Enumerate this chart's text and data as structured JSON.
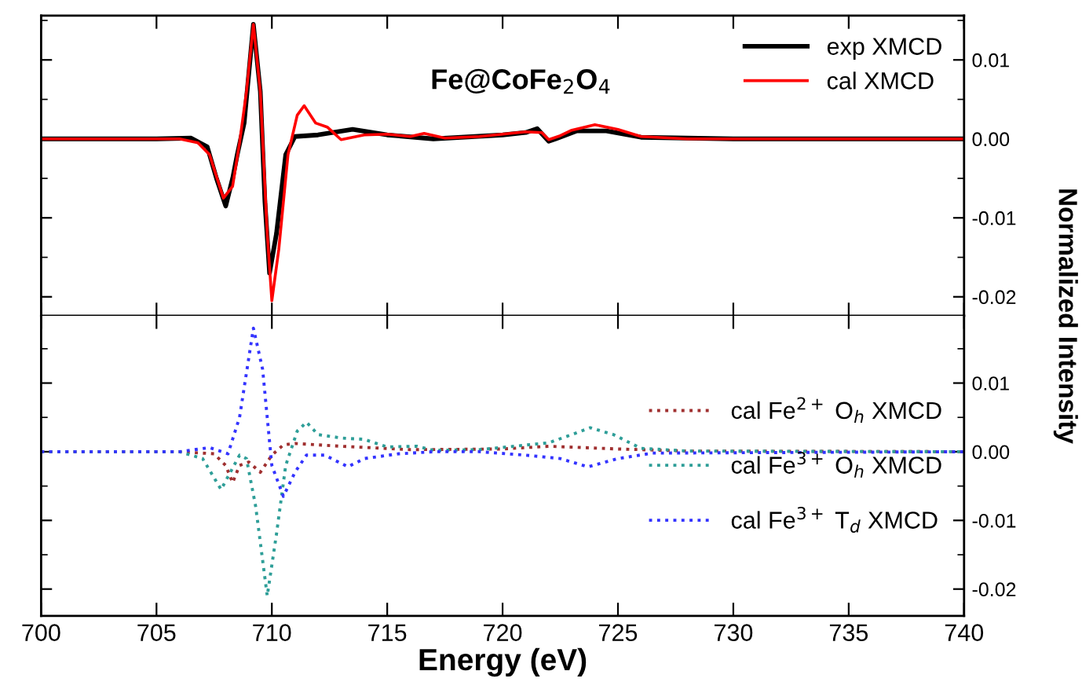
{
  "chart_data": [
    {
      "type": "line",
      "title": "Fe@CoFe$_{2}$O$_{4}$",
      "ylabel": "Normalized Intensity",
      "xlim": [
        700,
        740
      ],
      "xticks": [
        700,
        705,
        710,
        715,
        720,
        725,
        730,
        735,
        740
      ],
      "ylim": [
        -0.0224,
        0.0156
      ],
      "yticks": [
        {
          "value": 0.01,
          "label": "0.01"
        },
        {
          "value": 0,
          "label": "0.00"
        },
        {
          "value": -0.01,
          "label": "-0.01"
        },
        {
          "value": -0.02,
          "label": "-0.02"
        }
      ],
      "tick_labels": "y",
      "legend": "top right",
      "grid": false,
      "line_style": "solid",
      "series": [
        {
          "name": "exp XMCD",
          "color": "#000000",
          "x": [
            700,
            705,
            706.5,
            707.2,
            707.6,
            708.0,
            708.3,
            708.5,
            708.8,
            709.2,
            709.5,
            709.7,
            709.9,
            710.2,
            710.6,
            711.0,
            712,
            713.5,
            715,
            717,
            720,
            721,
            721.5,
            722,
            722.3,
            723.2,
            724.5,
            726,
            730,
            740
          ],
          "values": [
            0,
            0,
            0.0001,
            -0.001,
            -0.005,
            -0.0085,
            -0.005,
            -0.002,
            0.002,
            0.0145,
            0.006,
            -0.008,
            -0.017,
            -0.012,
            -0.002,
            0.0003,
            0.0005,
            0.0012,
            0.0005,
            0,
            0.0005,
            0.0008,
            0.0013,
            -0.0003,
            0,
            0.001,
            0.001,
            0.0002,
            0,
            0
          ]
        },
        {
          "name": "cal XMCD",
          "color": "#ff0000",
          "x": [
            700,
            706,
            706.8,
            707.3,
            707.9,
            708.3,
            708.6,
            708.9,
            709.2,
            709.5,
            709.8,
            710.0,
            710.3,
            710.7,
            711.1,
            711.4,
            711.9,
            712.4,
            713,
            714,
            715,
            716,
            716.6,
            717.5,
            719,
            720,
            721,
            721.7,
            722.0,
            722.5,
            723,
            724,
            725,
            726,
            728,
            740
          ],
          "values": [
            0,
            0,
            -0.0005,
            -0.002,
            -0.0075,
            -0.006,
            -0.0005,
            0.006,
            0.0145,
            0.006,
            -0.012,
            -0.0205,
            -0.014,
            -0.002,
            0.003,
            0.0042,
            0.002,
            0.0015,
            -0.0001,
            0.0005,
            0.0006,
            0.0003,
            0.0007,
            0.0001,
            0.0003,
            0.0006,
            0.0009,
            0.0008,
            -0.0001,
            0.0004,
            0.0011,
            0.0018,
            0.0012,
            0.0003,
            0,
            0
          ]
        }
      ]
    },
    {
      "type": "line",
      "xlabel": "Energy (eV)",
      "xlim": [
        700,
        740
      ],
      "xticks": [
        700,
        705,
        710,
        715,
        720,
        725,
        730,
        735,
        740
      ],
      "ylim": [
        -0.0239,
        0.0198
      ],
      "yticks": [
        {
          "value": 0.01,
          "label": "0.01"
        },
        {
          "value": 0,
          "label": "0.00"
        },
        {
          "value": -0.01,
          "label": "-0.01"
        },
        {
          "value": -0.02,
          "label": "-0.02"
        }
      ],
      "legend": "right",
      "grid": false,
      "line_style": "dotted",
      "series": [
        {
          "name": "cal Fe$^{2+}$ O$_{h}$ XMCD",
          "color": "#a03030",
          "x": [
            700,
            706,
            707.5,
            708.0,
            708.3,
            708.6,
            709.0,
            709.5,
            710.0,
            710.5,
            711,
            713,
            716,
            720,
            722,
            725,
            728,
            740
          ],
          "values": [
            0,
            0,
            -0.0003,
            -0.002,
            -0.0045,
            -0.002,
            -0.0015,
            -0.003,
            -0.0005,
            0.001,
            0.0012,
            0.0008,
            0.0003,
            0.0004,
            0.0008,
            0.0004,
            0.0001,
            0
          ]
        },
        {
          "name": "cal Fe$^{3+}$ O$_{h}$ XMCD",
          "color": "#2e9e98",
          "x": [
            700,
            706,
            707,
            707.8,
            708.2,
            708.6,
            708.9,
            709.3,
            709.8,
            710.2,
            710.6,
            711.1,
            711.5,
            712,
            713,
            714,
            715,
            716.3,
            717,
            719,
            720.5,
            722,
            723,
            723.8,
            724.8,
            726,
            728,
            740
          ],
          "values": [
            0,
            0,
            -0.001,
            -0.0055,
            -0.003,
            -0.0005,
            -0.001,
            -0.008,
            -0.021,
            -0.012,
            -0.002,
            0.003,
            0.0043,
            0.0025,
            0.002,
            0.0018,
            0.0007,
            0.0008,
            0.0002,
            0.0003,
            0.0008,
            0.0013,
            0.0025,
            0.0035,
            0.0025,
            0.0005,
            0.0001,
            0
          ]
        },
        {
          "name": "cal Fe$^{3+}$ T$_{d}$ XMCD",
          "color": "#3333ff",
          "x": [
            700,
            706,
            707.3,
            708.1,
            708.6,
            709.2,
            709.6,
            710,
            710.5,
            711,
            711.5,
            712.3,
            713.3,
            714,
            715.5,
            717,
            719,
            721,
            722.5,
            723.7,
            725,
            726.5,
            740
          ],
          "values": [
            0,
            0,
            0.0006,
            -0.0003,
            0.005,
            0.018,
            0.012,
            -0.002,
            -0.0065,
            -0.003,
            -0.0005,
            -0.0005,
            -0.0022,
            -0.001,
            -0.0003,
            0,
            0,
            -0.0005,
            -0.001,
            -0.0022,
            -0.001,
            -0.0002,
            0
          ]
        }
      ]
    }
  ]
}
